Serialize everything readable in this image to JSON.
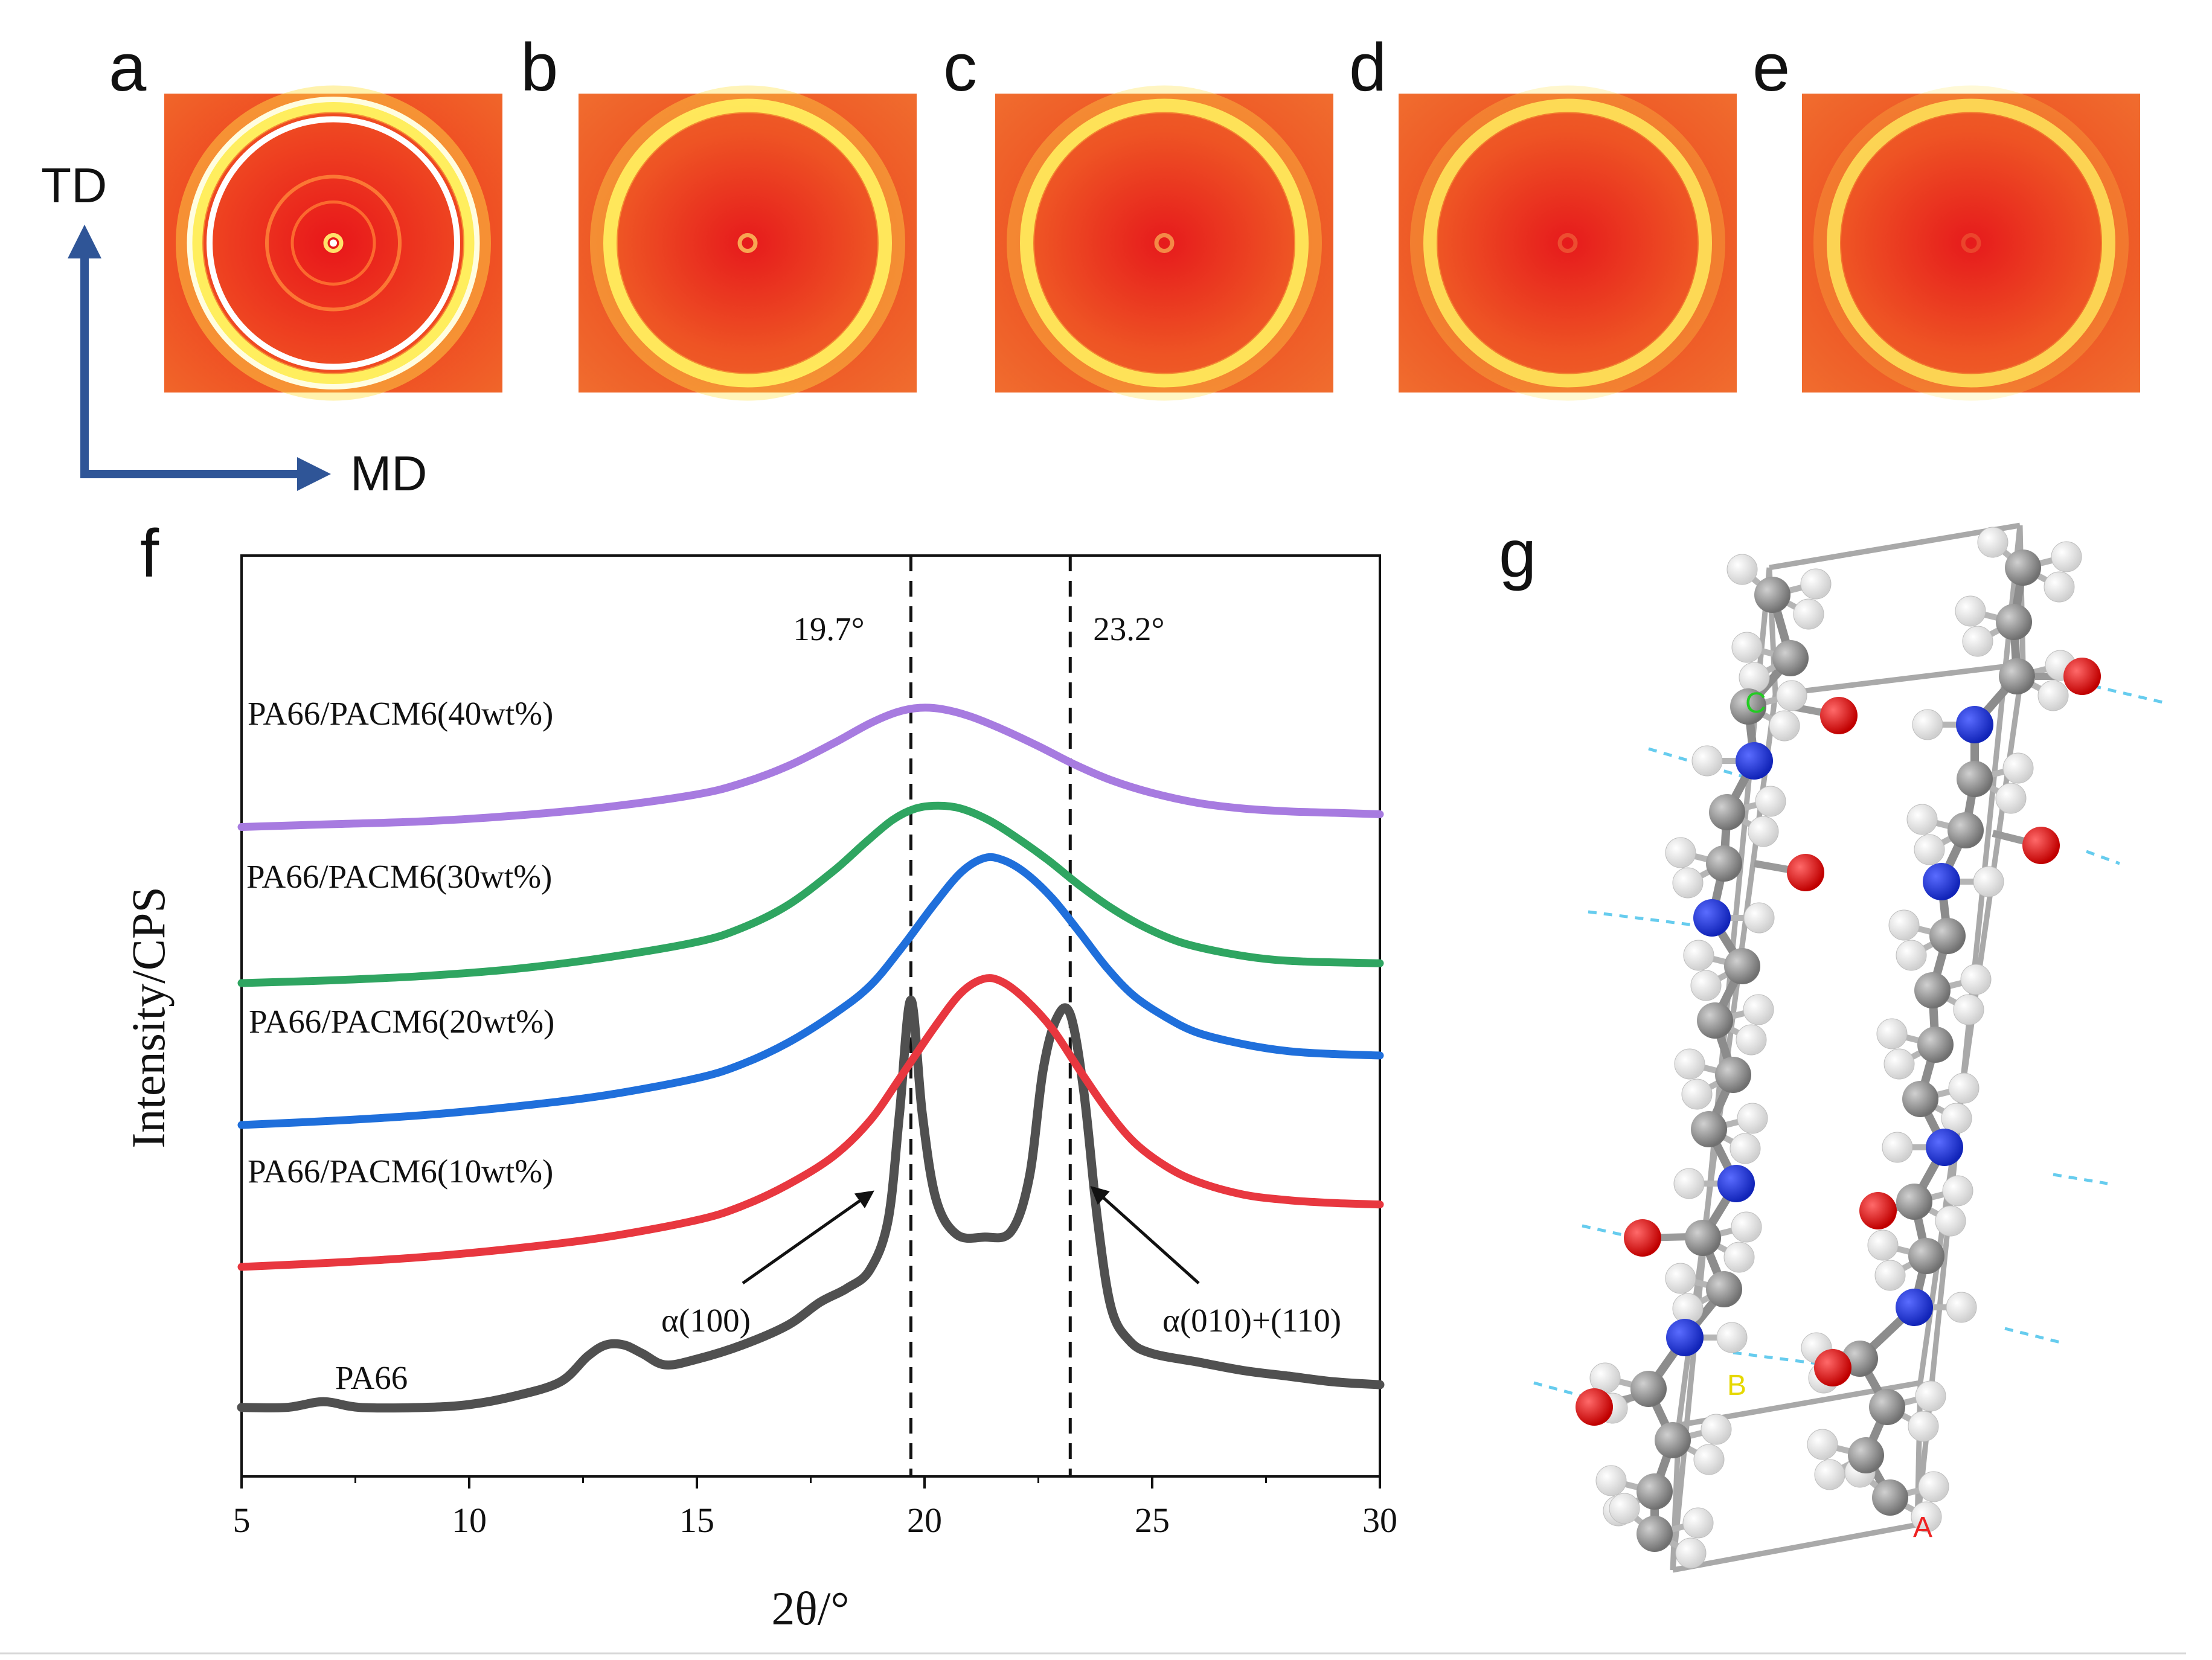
{
  "panels": {
    "labels": [
      "a",
      "b",
      "c",
      "d",
      "e",
      "f",
      "g"
    ],
    "saxs": [
      {
        "label": "a",
        "ring_intensity": 1.0,
        "inner_rings": true,
        "center_spot": 1.0
      },
      {
        "label": "b",
        "ring_intensity": 0.85,
        "inner_rings": false,
        "center_spot": 0.7
      },
      {
        "label": "c",
        "ring_intensity": 0.75,
        "inner_rings": false,
        "center_spot": 0.55
      },
      {
        "label": "d",
        "ring_intensity": 0.6,
        "inner_rings": false,
        "center_spot": 0.25
      },
      {
        "label": "e",
        "ring_intensity": 0.5,
        "inner_rings": false,
        "center_spot": 0.2
      }
    ]
  },
  "directions": {
    "td": "TD",
    "md": "MD",
    "arrow_color": "#2f5597"
  },
  "chart_data": {
    "type": "line",
    "panel_label": "f",
    "xlabel": "2θ/°",
    "ylabel": "Intensity/CPS",
    "xlim": [
      5,
      30
    ],
    "ylim": [
      0,
      6
    ],
    "xticks": [
      5,
      10,
      15,
      20,
      25,
      30
    ],
    "x_tick_labels": [
      "5",
      "10",
      "15",
      "20",
      "25",
      "30"
    ],
    "reference_lines": [
      {
        "x": 19.7,
        "label": "19.7°"
      },
      {
        "x": 23.2,
        "label": "23.2°"
      }
    ],
    "annotations": [
      {
        "text": "α(100)",
        "points_to_x": 19.7
      },
      {
        "text": "α(010)+(110)",
        "points_to_x": 23.2
      }
    ],
    "series": [
      {
        "name": "PA66",
        "color": "#505050",
        "x": [
          5,
          6,
          6.8,
          7.6,
          9,
          10,
          11,
          12,
          12.6,
          13.0,
          13.4,
          13.8,
          14.3,
          15,
          16,
          17,
          17.7,
          18.3,
          18.8,
          19.2,
          19.45,
          19.7,
          19.95,
          20.25,
          20.7,
          21.3,
          21.9,
          22.3,
          22.6,
          22.9,
          23.2,
          23.5,
          23.8,
          24.1,
          24.5,
          25,
          26,
          27,
          28,
          29,
          30
        ],
        "y": [
          0.38,
          0.38,
          0.42,
          0.38,
          0.38,
          0.4,
          0.46,
          0.56,
          0.74,
          0.82,
          0.82,
          0.76,
          0.68,
          0.72,
          0.82,
          0.96,
          1.12,
          1.22,
          1.35,
          1.7,
          2.45,
          3.25,
          2.45,
          1.85,
          1.6,
          1.58,
          1.62,
          2.0,
          2.75,
          3.12,
          3.15,
          2.6,
          1.7,
          1.08,
          0.85,
          0.76,
          0.7,
          0.64,
          0.6,
          0.56,
          0.54
        ]
      },
      {
        "name": "PA66/PACM6(10wt%)",
        "color": "#e8373f",
        "x": [
          5,
          7,
          9,
          11,
          13,
          15,
          16,
          17,
          18,
          18.8,
          19.5,
          20.2,
          20.8,
          21.3,
          21.7,
          22.2,
          22.8,
          23.4,
          24.0,
          24.6,
          25.3,
          26,
          27,
          28,
          29,
          30
        ],
        "y": [
          1.37,
          1.4,
          1.44,
          1.5,
          1.58,
          1.7,
          1.8,
          1.95,
          2.15,
          2.4,
          2.72,
          3.05,
          3.3,
          3.4,
          3.38,
          3.26,
          3.05,
          2.76,
          2.48,
          2.25,
          2.08,
          1.97,
          1.88,
          1.84,
          1.82,
          1.81
        ]
      },
      {
        "name": "PA66/PACM6(20wt%)",
        "color": "#1f6fdb",
        "x": [
          5,
          7,
          9,
          11,
          13,
          15,
          16,
          17,
          18,
          18.8,
          19.5,
          20.2,
          20.8,
          21.3,
          21.7,
          22.2,
          22.8,
          23.4,
          24.0,
          24.6,
          25.3,
          26,
          27,
          28,
          29,
          30
        ],
        "y": [
          2.37,
          2.4,
          2.44,
          2.5,
          2.58,
          2.7,
          2.8,
          2.95,
          3.15,
          3.35,
          3.62,
          3.92,
          4.15,
          4.25,
          4.24,
          4.15,
          3.97,
          3.73,
          3.48,
          3.28,
          3.13,
          3.02,
          2.94,
          2.89,
          2.87,
          2.86
        ]
      },
      {
        "name": "PA66/PACM6(30wt%)",
        "color": "#2fa561",
        "x": [
          5,
          7,
          9,
          11,
          13,
          15,
          16,
          17,
          18,
          18.7,
          19.3,
          19.8,
          20.3,
          20.8,
          21.4,
          22.0,
          22.7,
          23.4,
          24.1,
          24.8,
          25.6,
          26.5,
          27.5,
          28.5,
          30
        ],
        "y": [
          3.37,
          3.39,
          3.42,
          3.47,
          3.55,
          3.66,
          3.76,
          3.92,
          4.16,
          4.36,
          4.52,
          4.6,
          4.62,
          4.6,
          4.52,
          4.4,
          4.24,
          4.06,
          3.9,
          3.77,
          3.66,
          3.59,
          3.54,
          3.52,
          3.51
        ]
      },
      {
        "name": "PA66/PACM6(40wt%)",
        "color": "#a77be0",
        "x": [
          5,
          7,
          9,
          11,
          13,
          15,
          16,
          17,
          18,
          18.8,
          19.4,
          19.9,
          20.4,
          21.0,
          21.7,
          22.5,
          23.3,
          24.1,
          25.0,
          26,
          27,
          28,
          29,
          30
        ],
        "y": [
          4.47,
          4.49,
          4.51,
          4.55,
          4.61,
          4.7,
          4.78,
          4.9,
          5.06,
          5.2,
          5.28,
          5.31,
          5.3,
          5.25,
          5.16,
          5.04,
          4.91,
          4.8,
          4.71,
          4.64,
          4.6,
          4.58,
          4.57,
          4.56
        ]
      }
    ],
    "series_labels": [
      {
        "text": "PA66",
        "series": 0
      },
      {
        "text": "PA66/PACM6(10wt%)",
        "series": 1
      },
      {
        "text": "PA66/PACM6(20wt%)",
        "series": 2
      },
      {
        "text": "PA66/PACM6(30wt%)",
        "series": 3
      },
      {
        "text": "PA66/PACM6(40wt%)",
        "series": 4
      }
    ]
  },
  "molecule": {
    "axis_labels": [
      "C",
      "B",
      "A"
    ],
    "colors": {
      "carbon": "#8a8a8a",
      "hydrogen": "#f2f2f2",
      "nitrogen": "#1d33e0",
      "oxygen": "#e01818",
      "cell": "#a9a9a9",
      "hbond": "#66ccee",
      "label_c": "#22cc22",
      "label_b": "#e6d800",
      "label_a": "#ee2222"
    }
  }
}
